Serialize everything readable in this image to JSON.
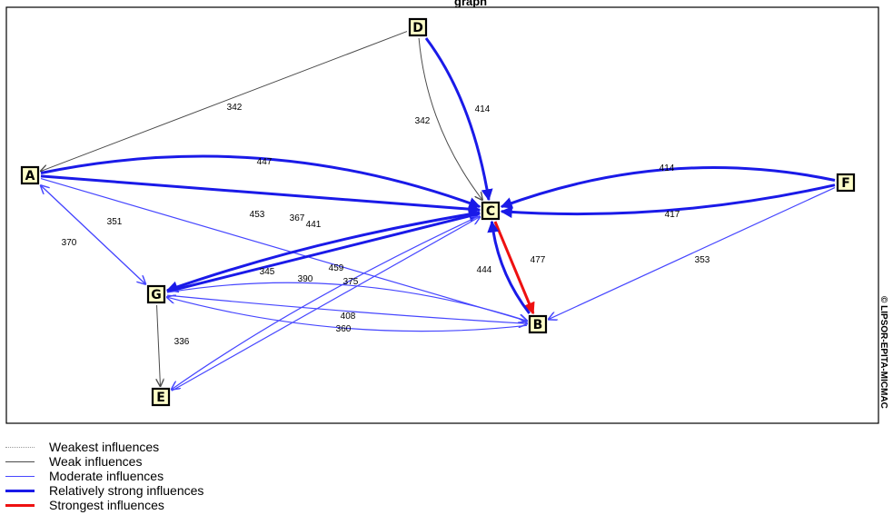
{
  "title_fragment": "graph",
  "copyright": "© LIPSOR-EPITA-MICMAC",
  "colors": {
    "weakest": "#9a9a9a",
    "weak": "#4a4a4a",
    "moderate": "#4646ff",
    "relatively_strong": "#1a1ae8",
    "strongest": "#ee1111"
  },
  "nodes": [
    {
      "id": "A",
      "label": "A"
    },
    {
      "id": "B",
      "label": "B"
    },
    {
      "id": "C",
      "label": "C"
    },
    {
      "id": "D",
      "label": "D"
    },
    {
      "id": "E",
      "label": "E"
    },
    {
      "id": "F",
      "label": "F"
    },
    {
      "id": "G",
      "label": "G"
    }
  ],
  "edges": [
    {
      "from": "D",
      "to": "A",
      "value": "342",
      "strength": "weak"
    },
    {
      "from": "D",
      "to": "C",
      "value": "342",
      "strength": "weak"
    },
    {
      "from": "D",
      "to": "C",
      "value": "414",
      "strength": "relatively_strong"
    },
    {
      "from": "A",
      "to": "C",
      "value": "447",
      "strength": "relatively_strong"
    },
    {
      "from": "A",
      "to": "C",
      "value": "453",
      "strength": "relatively_strong"
    },
    {
      "from": "F",
      "to": "C",
      "value": "414",
      "strength": "relatively_strong"
    },
    {
      "from": "F",
      "to": "C",
      "value": "417",
      "strength": "relatively_strong"
    },
    {
      "from": "F",
      "to": "B",
      "value": "353",
      "strength": "moderate"
    },
    {
      "from": "C",
      "to": "B",
      "value": "477",
      "strength": "strongest"
    },
    {
      "from": "B",
      "to": "C",
      "value": "444",
      "strength": "relatively_strong"
    },
    {
      "from": "A",
      "to": "G",
      "value": "351",
      "strength": "moderate"
    },
    {
      "from": "G",
      "to": "A",
      "value": "370",
      "strength": "moderate"
    },
    {
      "from": "A",
      "to": "B",
      "value": "367",
      "strength": "moderate"
    },
    {
      "from": "G",
      "to": "C",
      "value": "441",
      "strength": "relatively_strong"
    },
    {
      "from": "C",
      "to": "G",
      "value": "459",
      "strength": "relatively_strong"
    },
    {
      "from": "G",
      "to": "B",
      "value": "345",
      "strength": "moderate"
    },
    {
      "from": "C",
      "to": "E",
      "value": "390",
      "strength": "moderate"
    },
    {
      "from": "E",
      "to": "C",
      "value": "375",
      "strength": "moderate"
    },
    {
      "from": "G",
      "to": "B",
      "value": "408",
      "strength": "moderate"
    },
    {
      "from": "B",
      "to": "G",
      "value": "360",
      "strength": "moderate"
    },
    {
      "from": "G",
      "to": "E",
      "value": "336",
      "strength": "weak"
    }
  ],
  "legend": [
    {
      "style": "weakest",
      "label": "Weakest influences"
    },
    {
      "style": "weak",
      "label": "Weak influences"
    },
    {
      "style": "moderate",
      "label": "Moderate influences"
    },
    {
      "style": "relatively_strong",
      "label": "Relatively strong influences"
    },
    {
      "style": "strongest",
      "label": "Strongest influences"
    }
  ]
}
